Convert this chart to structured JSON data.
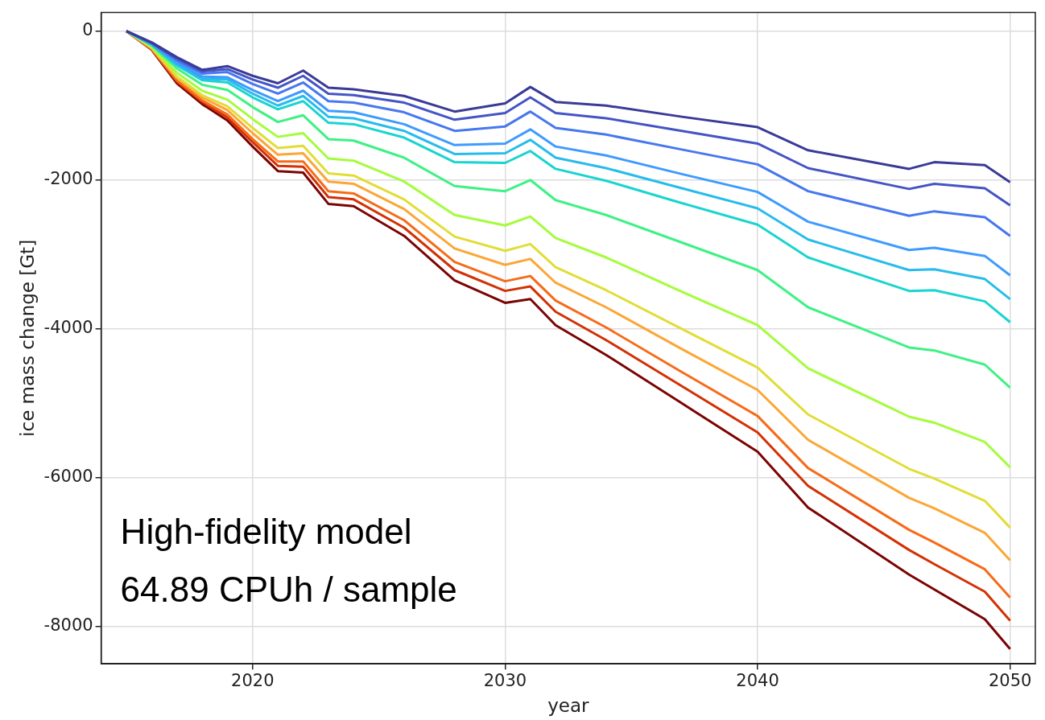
{
  "chart_data": {
    "type": "line",
    "xlabel": "year",
    "ylabel": "ice mass change [Gt]",
    "annotations": [
      "High-fidelity model",
      "64.89 CPUh / sample"
    ],
    "x": [
      2015,
      2016,
      2017,
      2018,
      2019,
      2020,
      2021,
      2022,
      2023,
      2024,
      2026,
      2028,
      2030,
      2031,
      2032,
      2034,
      2037,
      2040,
      2042,
      2046,
      2047,
      2049,
      2050
    ],
    "xlim": [
      2014,
      2051
    ],
    "xticks": [
      2020,
      2030,
      2040,
      2050
    ],
    "ylim": [
      -8500,
      250
    ],
    "yticks": [
      0,
      -2000,
      -4000,
      -6000,
      -8000
    ],
    "grid": true,
    "marker": "none",
    "line_style": "solid",
    "series": [
      {
        "color": "#3a3a98",
        "values": [
          0,
          -150,
          -350,
          -520,
          -470,
          -600,
          -700,
          -530,
          -760,
          -780,
          -870,
          -1080,
          -970,
          -750,
          -950,
          -1000,
          -1150,
          -1290,
          -1600,
          -1850,
          -1760,
          -1800,
          -2030
        ]
      },
      {
        "color": "#4454c4",
        "values": [
          0,
          -160,
          -370,
          -540,
          -510,
          -650,
          -760,
          -600,
          -840,
          -860,
          -960,
          -1190,
          -1100,
          -890,
          -1100,
          -1170,
          -1340,
          -1510,
          -1840,
          -2120,
          -2050,
          -2110,
          -2340
        ]
      },
      {
        "color": "#4777ef",
        "values": [
          0,
          -160,
          -390,
          -570,
          -550,
          -710,
          -840,
          -690,
          -940,
          -960,
          -1090,
          -1340,
          -1280,
          -1080,
          -1300,
          -1390,
          -1590,
          -1790,
          -2150,
          -2480,
          -2420,
          -2500,
          -2750
        ]
      },
      {
        "color": "#3e9bfe",
        "values": [
          0,
          -170,
          -420,
          -610,
          -620,
          -790,
          -940,
          -800,
          -1070,
          -1090,
          -1250,
          -1530,
          -1510,
          -1320,
          -1550,
          -1670,
          -1920,
          -2160,
          -2560,
          -2940,
          -2910,
          -3020,
          -3280
        ]
      },
      {
        "color": "#28bceb",
        "values": [
          0,
          -180,
          -440,
          -640,
          -650,
          -840,
          -1000,
          -870,
          -1150,
          -1170,
          -1340,
          -1650,
          -1640,
          -1460,
          -1700,
          -1840,
          -2110,
          -2380,
          -2800,
          -3210,
          -3200,
          -3330,
          -3600
        ]
      },
      {
        "color": "#1ad4d0",
        "values": [
          0,
          -180,
          -460,
          -660,
          -690,
          -890,
          -1050,
          -940,
          -1230,
          -1250,
          -1430,
          -1760,
          -1770,
          -1610,
          -1850,
          -2010,
          -2310,
          -2600,
          -3040,
          -3490,
          -3480,
          -3630,
          -3910
        ]
      },
      {
        "color": "#3df184",
        "values": [
          0,
          -190,
          -500,
          -720,
          -790,
          -1020,
          -1220,
          -1130,
          -1450,
          -1470,
          -1700,
          -2080,
          -2150,
          -2000,
          -2270,
          -2470,
          -2840,
          -3210,
          -3710,
          -4250,
          -4290,
          -4480,
          -4790
        ]
      },
      {
        "color": "#a4fc3c",
        "values": [
          0,
          -210,
          -560,
          -800,
          -920,
          -1180,
          -1420,
          -1370,
          -1710,
          -1740,
          -2020,
          -2470,
          -2610,
          -2490,
          -2780,
          -3040,
          -3500,
          -3950,
          -4530,
          -5180,
          -5260,
          -5520,
          -5860
        ]
      },
      {
        "color": "#e1dd37",
        "values": [
          0,
          -220,
          -610,
          -860,
          -1010,
          -1300,
          -1570,
          -1540,
          -1910,
          -1940,
          -2260,
          -2760,
          -2950,
          -2860,
          -3170,
          -3480,
          -4000,
          -4520,
          -5150,
          -5880,
          -6010,
          -6310,
          -6670
        ]
      },
      {
        "color": "#fca636",
        "values": [
          0,
          -230,
          -630,
          -890,
          -1060,
          -1370,
          -1660,
          -1640,
          -2020,
          -2050,
          -2390,
          -2920,
          -3140,
          -3060,
          -3380,
          -3710,
          -4270,
          -4820,
          -5490,
          -6270,
          -6410,
          -6740,
          -7110
        ]
      },
      {
        "color": "#f66b19",
        "values": [
          0,
          -240,
          -660,
          -930,
          -1120,
          -1450,
          -1750,
          -1750,
          -2150,
          -2180,
          -2540,
          -3100,
          -3360,
          -3290,
          -3620,
          -3980,
          -4580,
          -5170,
          -5870,
          -6700,
          -6870,
          -7230,
          -7610
        ]
      },
      {
        "color": "#d23105",
        "values": [
          0,
          -240,
          -680,
          -950,
          -1160,
          -1490,
          -1810,
          -1820,
          -2230,
          -2260,
          -2640,
          -3210,
          -3490,
          -3430,
          -3770,
          -4150,
          -4770,
          -5390,
          -6110,
          -6970,
          -7160,
          -7530,
          -7920
        ]
      },
      {
        "color": "#7a0403",
        "values": [
          0,
          -250,
          -700,
          -980,
          -1200,
          -1550,
          -1880,
          -1900,
          -2320,
          -2350,
          -2750,
          -3350,
          -3650,
          -3600,
          -3950,
          -4350,
          -5000,
          -5650,
          -6400,
          -7300,
          -7500,
          -7900,
          -8300
        ]
      }
    ]
  }
}
